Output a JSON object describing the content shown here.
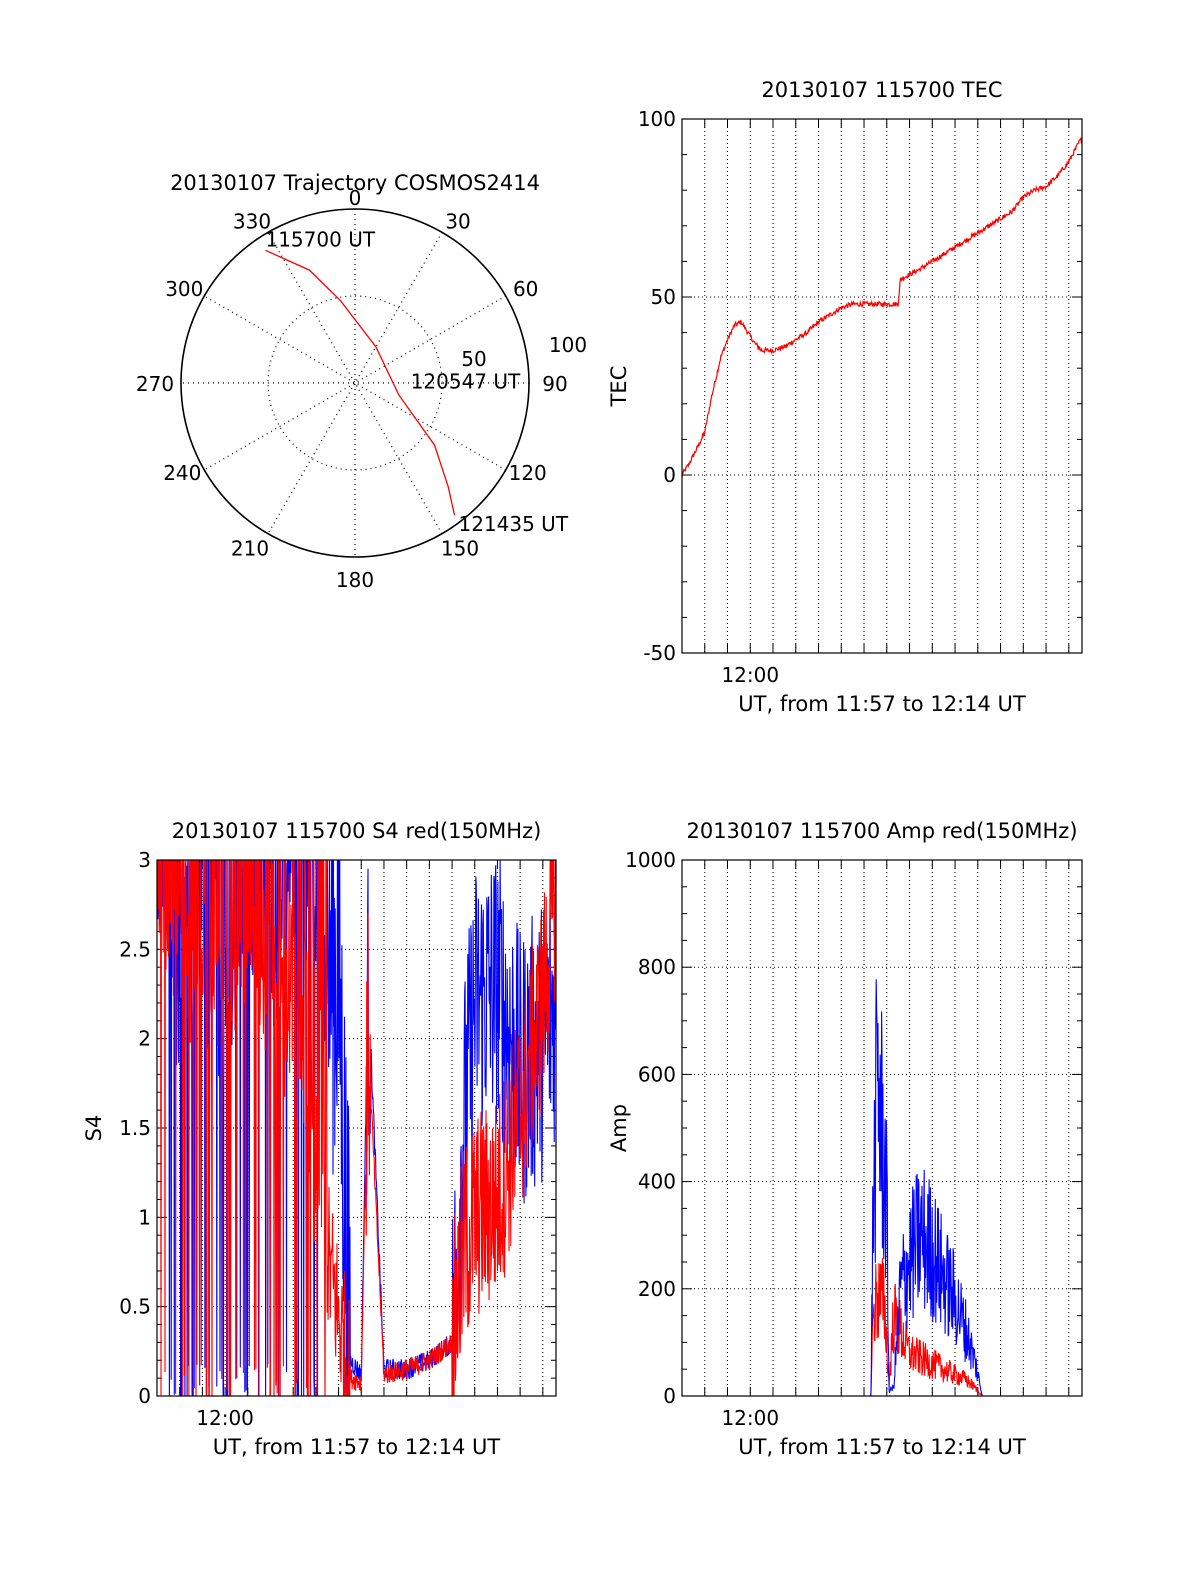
{
  "chart_data": [
    {
      "type": "scatter",
      "subtype": "polar-trajectory",
      "title": "20130107 Trajectory COSMOS2414",
      "angle_labels": [
        "0",
        "30",
        "60",
        "90",
        "120",
        "150",
        "180",
        "210",
        "240",
        "270",
        "300",
        "330"
      ],
      "radial_labels": [
        "50",
        "100"
      ],
      "rlim": [
        0,
        100
      ],
      "grid": true,
      "series": [
        {
          "color": "#ff0000",
          "points": [
            {
              "az": 326,
              "r": 92
            },
            {
              "az": 338,
              "r": 70
            },
            {
              "az": 350,
              "r": 48
            },
            {
              "az": 30,
              "r": 24
            },
            {
              "az": 105,
              "r": 26
            },
            {
              "az": 128,
              "r": 58
            },
            {
              "az": 138,
              "r": 80
            },
            {
              "az": 143,
              "r": 95
            }
          ]
        }
      ],
      "annotations": [
        {
          "text": "115700 UT",
          "az": 326,
          "r": 92
        },
        {
          "text": "120547 UT",
          "az": 105,
          "r": 26
        },
        {
          "text": "121435 UT",
          "az": 143,
          "r": 95
        }
      ]
    },
    {
      "type": "line",
      "title": "20130107 115700 TEC",
      "xlabel": "UT, from 11:57 to 12:14 UT",
      "ylabel": "TEC",
      "xlim": [
        0,
        17.58
      ],
      "ylim": [
        -50,
        100
      ],
      "yticks": [
        "-50",
        "0",
        "50",
        "100"
      ],
      "xtick_labels": [
        {
          "x": 3,
          "label": "12:00"
        }
      ],
      "grid": true,
      "series": [
        {
          "color": "#ff0000",
          "x": [
            0,
            0.3,
            0.7,
            1.0,
            1.3,
            1.7,
            2.0,
            2.3,
            2.6,
            2.9,
            3.2,
            3.5,
            4.0,
            4.5,
            5.0,
            5.5,
            6.0,
            6.5,
            7.0,
            7.5,
            8.0,
            8.5,
            9.0,
            9.5,
            9.6,
            10.5,
            11.5,
            12.5,
            13.5,
            14.5,
            15.0,
            15.5,
            16.0,
            16.5,
            17.0,
            17.5
          ],
          "y": [
            0,
            3,
            8,
            12,
            22,
            33,
            38,
            42,
            43,
            40,
            37,
            35,
            35,
            36,
            38,
            40,
            43,
            45,
            47,
            48,
            48,
            48,
            48,
            48,
            55,
            58,
            62,
            66,
            70,
            74,
            78,
            80,
            81,
            84,
            88,
            94
          ]
        }
      ]
    },
    {
      "type": "line",
      "title": "20130107 115700 S4 red(150MHz)",
      "xlabel": "UT, from 11:57 to 12:14 UT",
      "ylabel": "S4",
      "xlim": [
        0,
        17.58
      ],
      "ylim": [
        0,
        3
      ],
      "yticks": [
        "0",
        "0.5",
        "1",
        "1.5",
        "2",
        "2.5",
        "3"
      ],
      "xtick_labels": [
        {
          "x": 3,
          "label": "12:00"
        }
      ],
      "grid": true,
      "series": [
        {
          "color": "#0000ff",
          "note": "noisy, saturated 0-3 from 11:57 to ~12:06, low ~0.15 from 12:06 to 12:10, rising to 1.5-3 after 12:11",
          "x": [
            0,
            1,
            2,
            3,
            4,
            5,
            6,
            7,
            8,
            8.5,
            9,
            9.3,
            10,
            11,
            12,
            13,
            13.5,
            14,
            15,
            16,
            17,
            17.5
          ],
          "y": [
            3,
            2.2,
            2.8,
            2.0,
            2.9,
            2.4,
            3,
            2.5,
            2.4,
            0.2,
            0.12,
            2.3,
            0.15,
            0.15,
            0.2,
            0.3,
            1.5,
            2.2,
            2.3,
            1.8,
            2.0,
            2.2
          ]
        },
        {
          "color": "#ff0000",
          "note": "noisy, saturated 0-3 early, falling to ~0.8 by 12:06, low ~0.15 to 12:10, rising to ~2.5 by 12:14",
          "x": [
            0,
            1,
            2,
            3,
            4,
            5,
            6,
            7,
            7.5,
            8.5,
            9,
            9.3,
            10,
            11,
            12,
            13,
            13.5,
            14,
            15,
            16,
            17,
            17.5
          ],
          "y": [
            2.8,
            2.5,
            2.4,
            2.3,
            2.5,
            2.2,
            1.8,
            1.3,
            0.8,
            0.1,
            0.08,
            2.0,
            0.12,
            0.15,
            0.2,
            0.3,
            0.8,
            1.0,
            1.1,
            1.6,
            2.2,
            2.8
          ]
        }
      ]
    },
    {
      "type": "line",
      "title": "20130107 115700 Amp red(150MHz)",
      "xlabel": "UT, from 11:57 to 12:14 UT",
      "ylabel": "Amp",
      "xlim": [
        0,
        17.58
      ],
      "ylim": [
        0,
        1000
      ],
      "yticks": [
        "0",
        "200",
        "400",
        "600",
        "800",
        "1000"
      ],
      "xtick_labels": [
        {
          "x": 3,
          "label": "12:00"
        }
      ],
      "grid": true,
      "series": [
        {
          "color": "#ff0000",
          "x": [
            0,
            8.3,
            8.4,
            8.6,
            8.9,
            9.1,
            9.3,
            9.6,
            10.0,
            10.5,
            11.0,
            11.5,
            12.0,
            12.5,
            12.9,
            13.2,
            17.58
          ],
          "y": [
            0,
            0,
            150,
            190,
            170,
            20,
            150,
            120,
            80,
            70,
            60,
            50,
            40,
            30,
            15,
            0,
            0
          ]
        },
        {
          "color": "#0000ff",
          "x": [
            0,
            8.3,
            8.4,
            8.6,
            8.8,
            9.0,
            9.1,
            9.3,
            9.6,
            10.0,
            10.5,
            11.0,
            11.5,
            12.0,
            12.5,
            12.9,
            13.2,
            17.58
          ],
          "y": [
            0,
            0,
            350,
            600,
            480,
            350,
            10,
            15,
            200,
            250,
            300,
            270,
            220,
            180,
            120,
            60,
            0,
            0
          ]
        }
      ]
    }
  ]
}
